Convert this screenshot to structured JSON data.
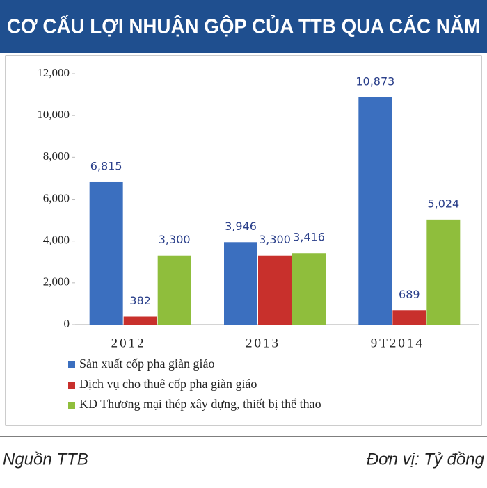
{
  "chart_data": {
    "type": "bar",
    "title": "CƠ CẤU LỢI NHUẬN GỘP CỦA TTB QUA CÁC NĂM",
    "categories": [
      "2012",
      "2013",
      "9T2014"
    ],
    "series": [
      {
        "name": "Sản xuất cốp pha giàn giáo",
        "color": "#3b6fbf",
        "values": [
          6815,
          3946,
          10873
        ],
        "value_labels": [
          "6,815",
          "3,946",
          "10,873"
        ]
      },
      {
        "name": "Dịch vụ cho thuê cốp pha giàn giáo",
        "color": "#c8302c",
        "values": [
          382,
          3300,
          689
        ],
        "value_labels": [
          "382",
          "3,300",
          "689"
        ]
      },
      {
        "name": "KD Thương mại thép xây dựng, thiết bị thể thao",
        "color": "#8fbe3c",
        "values": [
          3300,
          3416,
          5024
        ],
        "value_labels": [
          "3,300",
          "3,416",
          "5,024"
        ]
      }
    ],
    "ylim": [
      0,
      12000
    ],
    "yticks": [
      0,
      {
        "value": 2000,
        "label": "2,000"
      },
      {
        "value": 4000,
        "label": "4,000"
      },
      {
        "value": 6000,
        "label": "6,000"
      },
      {
        "value": 8000,
        "label": "8,000"
      },
      {
        "value": 10000,
        "label": "10,000"
      },
      {
        "value": 12000,
        "label": "12,000"
      }
    ],
    "grid": false,
    "source": "Nguồn TTB",
    "unit_note": "Đơn vị: Tỷ đồng"
  }
}
